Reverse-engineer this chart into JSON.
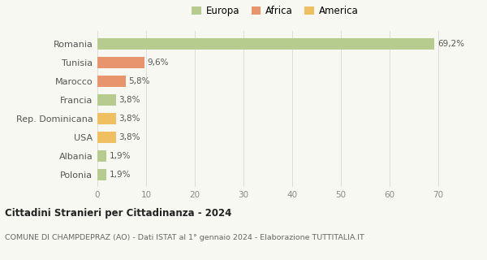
{
  "categories": [
    "Romania",
    "Tunisia",
    "Marocco",
    "Francia",
    "Rep. Dominicana",
    "USA",
    "Albania",
    "Polonia"
  ],
  "values": [
    69.2,
    9.6,
    5.8,
    3.8,
    3.8,
    3.8,
    1.9,
    1.9
  ],
  "labels": [
    "69,2%",
    "9,6%",
    "5,8%",
    "3,8%",
    "3,8%",
    "3,8%",
    "1,9%",
    "1,9%"
  ],
  "colors": [
    "#b5cc8e",
    "#e8956d",
    "#e8956d",
    "#b5cc8e",
    "#f0c060",
    "#f0c060",
    "#b5cc8e",
    "#b5cc8e"
  ],
  "legend_labels": [
    "Europa",
    "Africa",
    "America"
  ],
  "legend_colors": [
    "#b5cc8e",
    "#e8956d",
    "#f0c060"
  ],
  "xlim": [
    0,
    73
  ],
  "xticks": [
    0,
    10,
    20,
    30,
    40,
    50,
    60,
    70
  ],
  "title": "Cittadini Stranieri per Cittadinanza - 2024",
  "subtitle": "COMUNE DI CHAMPDEPRAZ (AO) - Dati ISTAT al 1° gennaio 2024 - Elaborazione TUTTITALIA.IT",
  "bg_color": "#f8f8f2",
  "bar_height": 0.6
}
